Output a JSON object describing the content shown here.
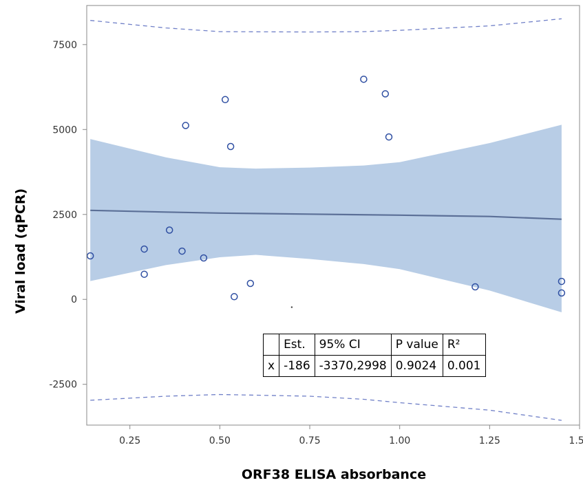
{
  "chart_data": {
    "type": "scatter",
    "title": "",
    "xlabel": "ORF38 ELISA absorbance",
    "ylabel": "Viral load (qPCR)",
    "xlim": [
      0.13,
      1.5
    ],
    "ylim": [
      -3700,
      8650
    ],
    "x_ticks": [
      0.25,
      0.5,
      0.75,
      1.0,
      1.25,
      1.5
    ],
    "x_tick_labels": [
      "0.25",
      "0.50",
      "0.75",
      "1.00",
      "1.25",
      "1.50"
    ],
    "y_ticks": [
      -2500,
      0,
      2500,
      5000,
      7500
    ],
    "y_tick_labels": [
      "-2500",
      "0",
      "2500",
      "5000",
      "7500"
    ],
    "grid": false,
    "points": [
      {
        "x": 0.14,
        "y": 1280
      },
      {
        "x": 0.29,
        "y": 1480
      },
      {
        "x": 0.29,
        "y": 740
      },
      {
        "x": 0.36,
        "y": 2040
      },
      {
        "x": 0.395,
        "y": 1420
      },
      {
        "x": 0.405,
        "y": 5120
      },
      {
        "x": 0.455,
        "y": 1220
      },
      {
        "x": 0.515,
        "y": 5880
      },
      {
        "x": 0.53,
        "y": 4500
      },
      {
        "x": 0.54,
        "y": 80
      },
      {
        "x": 0.585,
        "y": 470
      },
      {
        "x": 0.9,
        "y": 6480
      },
      {
        "x": 0.96,
        "y": 6050
      },
      {
        "x": 0.97,
        "y": 4780
      },
      {
        "x": 1.21,
        "y": 370
      },
      {
        "x": 1.45,
        "y": 530
      },
      {
        "x": 1.45,
        "y": 190
      }
    ],
    "fit_line": {
      "x": [
        0.14,
        0.35,
        0.5,
        0.75,
        1.0,
        1.25,
        1.45
      ],
      "y": [
        2620,
        2570,
        2540,
        2510,
        2480,
        2440,
        2360
      ]
    },
    "confidence_band": {
      "x": [
        0.14,
        0.35,
        0.5,
        0.6,
        0.75,
        0.9,
        1.0,
        1.25,
        1.45
      ],
      "upper": [
        4720,
        4180,
        3890,
        3850,
        3880,
        3940,
        4040,
        4600,
        5140
      ],
      "lower": [
        540,
        1010,
        1240,
        1310,
        1190,
        1040,
        890,
        260,
        -380
      ]
    },
    "prediction_upper": {
      "x": [
        0.14,
        0.35,
        0.5,
        0.75,
        0.9,
        1.0,
        1.25,
        1.45
      ],
      "y": [
        8210,
        7990,
        7880,
        7870,
        7880,
        7920,
        8050,
        8260
      ]
    },
    "prediction_lower": {
      "x": [
        0.14,
        0.35,
        0.5,
        0.75,
        0.9,
        1.0,
        1.25,
        1.45
      ],
      "y": [
        -2970,
        -2850,
        -2800,
        -2850,
        -2940,
        -3040,
        -3260,
        -3560
      ]
    },
    "stray_mark": {
      "x": 0.7,
      "y": -230
    }
  },
  "stats_table": {
    "header": [
      "",
      "Est.",
      "95% CI",
      "P value",
      "R²"
    ],
    "row": [
      "x",
      "-186",
      "-3370,2998",
      "0.9024",
      "0.001"
    ]
  },
  "colors": {
    "band_fill": "#b8cde6",
    "fit_line": "#5b6f97",
    "prediction_line": "#6f7fc7",
    "marker": "#2f4fa2"
  }
}
